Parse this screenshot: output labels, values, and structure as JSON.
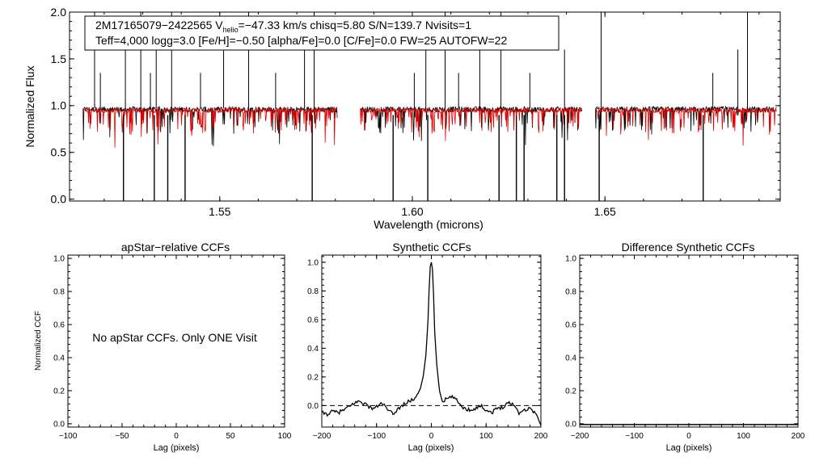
{
  "chart_data": [
    {
      "type": "line",
      "id": "spectrum",
      "xlabel": "Wavelength (microns)",
      "ylabel": "Normalized Flux",
      "xlim": [
        1.511,
        1.6955
      ],
      "ylim": [
        -0.02,
        2.0
      ],
      "x_ticks": [
        1.55,
        1.6,
        1.65
      ],
      "x_tick_labels": [
        "1.55",
        "1.60",
        "1.65"
      ],
      "y_ticks": [
        0.0,
        0.5,
        1.0,
        1.5,
        2.0
      ],
      "y_tick_labels": [
        "0.0",
        "0.5",
        "1.0",
        "1.5",
        "2.0"
      ],
      "annotation": {
        "line1_prefix": "2M17165079−2422565  V",
        "line1_sub": "helio",
        "line1_suffix": "=−47.33 km/s  chisq=5.80  S/N=139.7  Nvisits=1",
        "line2": "Teff=4,000 logg=3.0 [Fe/H]=−0.50 [alpha/Fe]=0.0 [C/Fe]=0.0 FW=25 AUTOFW=22"
      },
      "chip_ranges": [
        [
          1.5145,
          1.5805
        ],
        [
          1.5865,
          1.644
        ],
        [
          1.6475,
          1.6945
        ]
      ],
      "series": [
        {
          "name": "observed",
          "color": "#000000",
          "continuum": 0.96
        },
        {
          "name": "synthetic",
          "color": "#e00000",
          "continuum": 0.95
        }
      ],
      "upward_spikes": [
        1.5175,
        1.519,
        1.5255,
        1.5295,
        1.532,
        1.5335,
        1.5375,
        1.545,
        1.551,
        1.5575,
        1.5645,
        1.572,
        1.5745,
        1.6005,
        1.6035,
        1.6085,
        1.612,
        1.6175,
        1.623,
        1.6305,
        1.6395,
        1.649,
        1.678,
        1.6845,
        1.687,
        1.6955
      ],
      "downward_dips": [
        1.525,
        1.533,
        1.5365,
        1.541,
        1.574,
        1.595,
        1.604,
        1.6225,
        1.627,
        1.629,
        1.6375,
        1.6395,
        1.6485,
        1.6755
      ]
    },
    {
      "type": "line",
      "id": "apstar_ccf",
      "title": "apStar−relative CCFs",
      "xlabel": "Lag (pixels)",
      "ylabel": "Normalized CCF",
      "xlim": [
        -100,
        100
      ],
      "ylim": [
        -0.02,
        1.02
      ],
      "x_ticks": [
        -100,
        -50,
        0,
        50,
        100
      ],
      "x_tick_labels": [
        "−100",
        "−50",
        "0",
        "50",
        "100"
      ],
      "y_ticks": [
        0.0,
        0.2,
        0.4,
        0.6,
        0.8,
        1.0
      ],
      "y_tick_labels": [
        "0.0",
        "0.2",
        "0.4",
        "0.6",
        "0.8",
        "1.0"
      ],
      "message": "No apStar CCFs.  Only ONE Visit",
      "series": []
    },
    {
      "type": "line",
      "id": "synthetic_ccf",
      "title": "Synthetic CCFs",
      "xlabel": "Lag (pixels)",
      "ylabel": "",
      "xlim": [
        -200,
        200
      ],
      "ylim": [
        -0.15,
        1.05
      ],
      "x_ticks": [
        -200,
        -100,
        0,
        100,
        200
      ],
      "x_tick_labels": [
        "−200",
        "−100",
        "0",
        "100",
        "200"
      ],
      "y_ticks": [
        0.0,
        0.2,
        0.4,
        0.6,
        0.8,
        1.0
      ],
      "y_tick_labels": [
        "0.0",
        "0.2",
        "0.4",
        "0.6",
        "0.8",
        "1.0"
      ],
      "reference_line_y": 0.0,
      "series": [
        {
          "name": "ccf",
          "color": "#000000",
          "x": [
            -200,
            -190,
            -180,
            -170,
            -160,
            -150,
            -140,
            -130,
            -120,
            -110,
            -100,
            -90,
            -80,
            -70,
            -60,
            -50,
            -40,
            -30,
            -20,
            -15,
            -10,
            -6,
            -4,
            -2,
            0,
            2,
            4,
            6,
            10,
            15,
            20,
            30,
            40,
            50,
            60,
            70,
            80,
            90,
            100,
            110,
            120,
            130,
            140,
            150,
            160,
            170,
            180,
            190,
            200
          ],
          "y": [
            -0.05,
            -0.06,
            -0.04,
            -0.05,
            -0.03,
            -0.01,
            0.02,
            0.03,
            0.01,
            -0.02,
            -0.01,
            0.02,
            -0.03,
            -0.06,
            -0.02,
            0.01,
            0.03,
            0.05,
            0.12,
            0.2,
            0.35,
            0.6,
            0.82,
            0.97,
            1.0,
            0.95,
            0.78,
            0.52,
            0.28,
            0.1,
            0.03,
            0.05,
            0.06,
            0.02,
            -0.02,
            -0.03,
            -0.02,
            0.0,
            -0.03,
            -0.05,
            -0.02,
            -0.01,
            0.02,
            0.01,
            -0.05,
            -0.03,
            -0.02,
            -0.05,
            -0.14
          ]
        }
      ]
    },
    {
      "type": "line",
      "id": "difference_ccf",
      "title": "Difference Synthetic CCFs",
      "xlabel": "Lag (pixels)",
      "ylabel": "",
      "xlim": [
        -200,
        200
      ],
      "ylim": [
        -0.02,
        1.02
      ],
      "x_ticks": [
        -200,
        -100,
        0,
        100,
        200
      ],
      "x_tick_labels": [
        "−200",
        "−100",
        "0",
        "100",
        "200"
      ],
      "y_ticks": [
        0.0,
        0.2,
        0.4,
        0.6,
        0.8,
        1.0
      ],
      "y_tick_labels": [
        "0.0",
        "0.2",
        "0.4",
        "0.6",
        "0.8",
        "1.0"
      ],
      "series": [
        {
          "name": "difference",
          "color": "#000000",
          "x": [
            -200,
            200
          ],
          "y": [
            -0.005,
            -0.005
          ]
        }
      ]
    }
  ]
}
